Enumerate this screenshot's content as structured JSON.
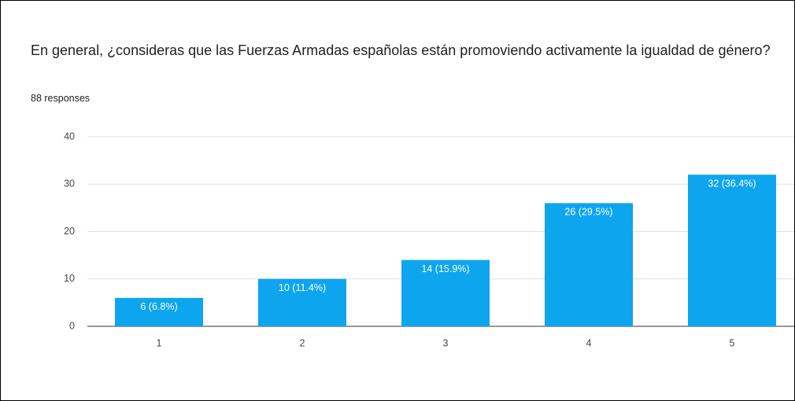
{
  "chart_data": {
    "type": "bar",
    "title": "En general, ¿consideras que las Fuerzas Armadas españolas están promoviendo activamente la igualdad de género?",
    "subtitle": "88 responses",
    "categories": [
      "1",
      "2",
      "3",
      "4",
      "5"
    ],
    "values": [
      6,
      10,
      14,
      26,
      32
    ],
    "value_labels": [
      "6 (6.8%)",
      "10 (11.4%)",
      "14 (15.9%)",
      "26 (29.5%)",
      "32 (36.4%)"
    ],
    "color": "#0ea5ef",
    "ylim": [
      0,
      40
    ],
    "yticks": [
      0,
      10,
      20,
      30,
      40
    ],
    "grid": true
  }
}
